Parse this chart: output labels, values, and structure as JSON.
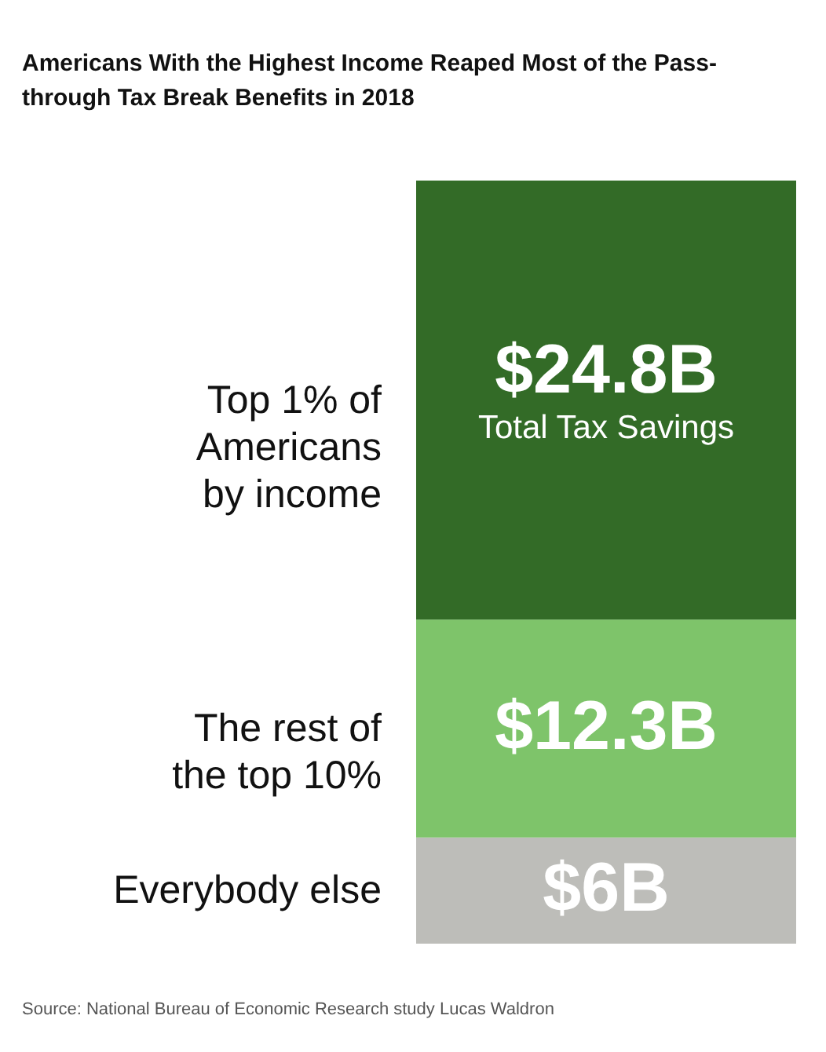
{
  "chart_data": {
    "type": "bar",
    "title": "Americans With the Highest Income Reaped Most of the Pass-through Tax Break Benefits in 2018",
    "categories": [
      null
    ],
    "stacked": true,
    "tick_labels": false,
    "series": [
      {
        "name": "Everybody else",
        "color": "#bdbdb9",
        "values": [
          6
        ],
        "value_labels": [
          "$6B"
        ]
      },
      {
        "name": "The rest of the top 10%",
        "color": "#7ec46a",
        "values": [
          12.3
        ],
        "value_labels": [
          "$12.3B"
        ]
      },
      {
        "name": "Top 1% of Americans by income",
        "color": "#336b27",
        "values": [
          24.8
        ],
        "value_labels": [
          "$24.8B"
        ]
      }
    ],
    "annotations": [
      "Total Tax Savings",
      "Source: National Bureau of Economic Research study Lucas Waldron"
    ]
  }
}
